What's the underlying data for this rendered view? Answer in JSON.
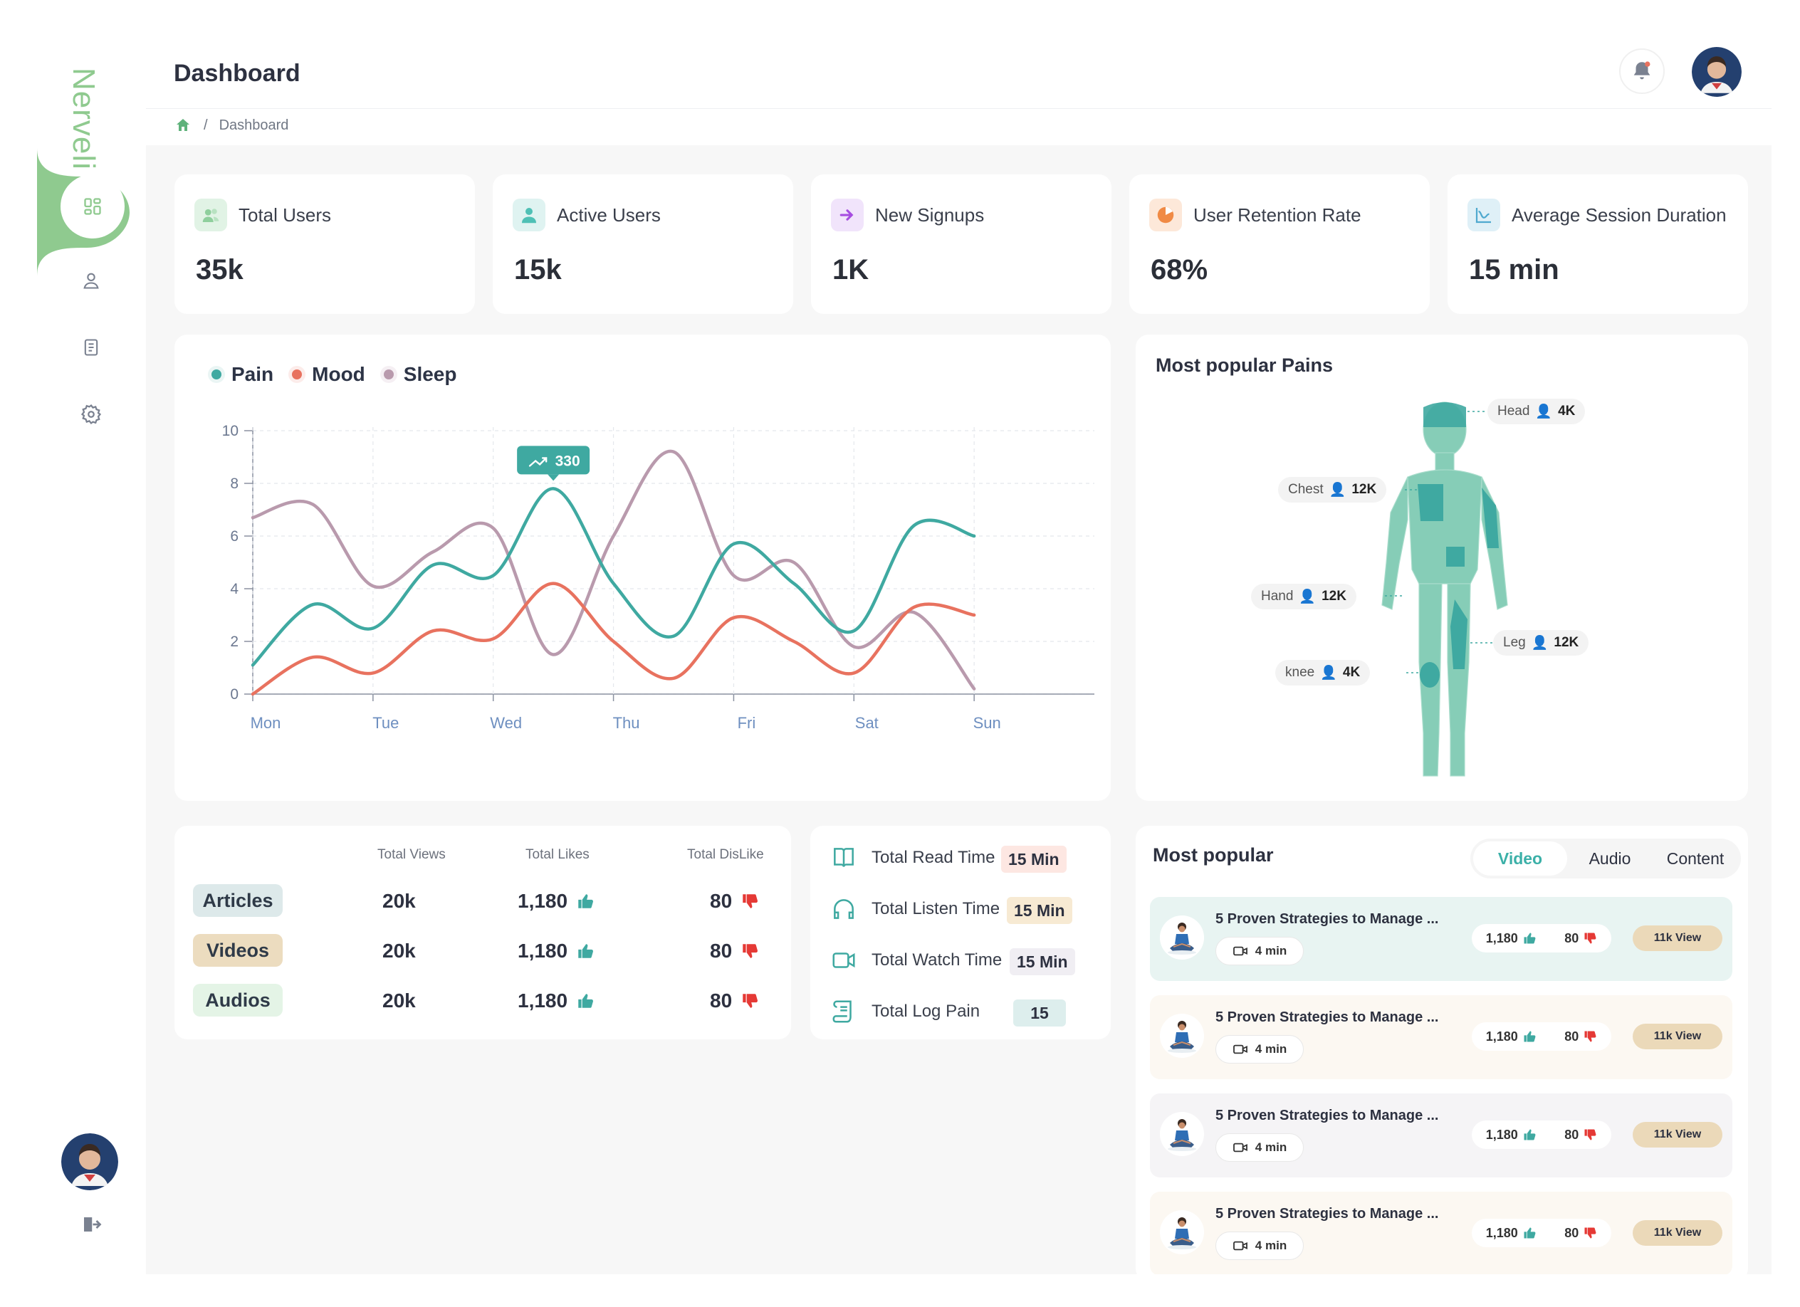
{
  "brand": {
    "name": "Nerveli"
  },
  "header": {
    "title": "Dashboard"
  },
  "breadcrumb": {
    "current": "Dashboard",
    "separator": "/"
  },
  "stats": [
    {
      "label": "Total Users",
      "value": "35k",
      "icon": "users-icon",
      "color": "#8fcf9d"
    },
    {
      "label": "Active Users",
      "value": "15k",
      "icon": "user-icon",
      "color": "#4fc0b5"
    },
    {
      "label": "New Signups",
      "value": "1K",
      "icon": "signup-arrow-icon",
      "color": "#a64ce0"
    },
    {
      "label": "User Retention Rate",
      "value": "68%",
      "icon": "pie-icon",
      "color": "#f08a45"
    },
    {
      "label": "Average Session Duration",
      "value": "15 min",
      "icon": "chart-line-icon",
      "color": "#4fa9cf"
    }
  ],
  "chart_data": {
    "type": "line",
    "categories": [
      "Mon",
      "Tue",
      "Wed",
      "Thu",
      "Fri",
      "Sat",
      "Sun"
    ],
    "x": [
      0.0,
      0.5,
      1.0,
      1.5,
      2.0,
      2.5,
      3.0,
      3.5,
      4.0,
      4.5,
      5.0,
      5.5,
      6.0,
      6.5,
      7.0
    ],
    "ylim": [
      0,
      10
    ],
    "yticks": [
      "0",
      "2",
      "4",
      "6",
      "8",
      "10"
    ],
    "grid": true,
    "legend_position": "top-left",
    "series": [
      {
        "name": "Pain",
        "color": "#3fa9a1",
        "values": [
          1.1,
          3.4,
          2.5,
          4.9,
          4.5,
          7.8,
          4.2,
          2.2,
          5.7,
          4.2,
          2.4,
          6.4,
          6.0,
          6.0,
          6.0
        ]
      },
      {
        "name": "Mood",
        "color": "#e8725f",
        "values": [
          0.0,
          1.4,
          0.8,
          2.4,
          2.1,
          4.2,
          2.0,
          0.6,
          2.9,
          2.0,
          0.8,
          3.3,
          3.0,
          3.0,
          3.0
        ]
      },
      {
        "name": "Sleep",
        "color": "#b99aad",
        "values": [
          6.7,
          7.2,
          4.1,
          5.4,
          6.3,
          1.5,
          6.0,
          9.2,
          4.5,
          5.0,
          1.8,
          3.1,
          0.2,
          0.2,
          0.2
        ]
      }
    ],
    "annotation": {
      "label": "330",
      "series": "Pain",
      "x": 3
    }
  },
  "pains": {
    "title": "Most popular Pains",
    "labels": [
      {
        "part": "Head",
        "count": "4K"
      },
      {
        "part": "Chest",
        "count": "12K"
      },
      {
        "part": "Hand",
        "count": "12K"
      },
      {
        "part": "Leg",
        "count": "12K"
      },
      {
        "part": "knee",
        "count": "4K"
      }
    ]
  },
  "content_table": {
    "headers": [
      "Total Views",
      "Total Likes",
      "Total DisLike"
    ],
    "rows": [
      {
        "type": "Articles",
        "views": "20k",
        "likes": "1,180",
        "dislikes": "80",
        "color": "#dde9ea"
      },
      {
        "type": "Videos",
        "views": "20k",
        "likes": "1,180",
        "dislikes": "80",
        "color": "#ecdcbf"
      },
      {
        "type": "Audios",
        "views": "20k",
        "likes": "1,180",
        "dislikes": "80",
        "color": "#e4f4e6"
      }
    ]
  },
  "time_stats": [
    {
      "label": "Total Read Time",
      "value": "15 Min",
      "icon": "book-icon",
      "color": "#fde7e2"
    },
    {
      "label": "Total Listen Time",
      "value": "15 Min",
      "icon": "headphones-icon",
      "color": "#f7ead3"
    },
    {
      "label": "Total Watch Time",
      "value": "15 Min",
      "icon": "video-icon",
      "color": "#f0eef3"
    },
    {
      "label": "Total Log Pain",
      "value": "15",
      "icon": "scroll-icon",
      "color": "#ddeeed"
    }
  ],
  "most_popular": {
    "title": "Most popular",
    "tabs": [
      "Video",
      "Audio",
      "Content"
    ],
    "active_tab": "Video",
    "items": [
      {
        "title": "5 Proven Strategies to Manage ...",
        "duration": "4 min",
        "likes": "1,180",
        "dislikes": "80",
        "views": "11k View",
        "bg": "#e8f4f2"
      },
      {
        "title": "5 Proven Strategies to Manage ...",
        "duration": "4 min",
        "likes": "1,180",
        "dislikes": "80",
        "views": "11k View",
        "bg": "#fcf8f2"
      },
      {
        "title": "5 Proven Strategies to Manage ...",
        "duration": "4 min",
        "likes": "1,180",
        "dislikes": "80",
        "views": "11k View",
        "bg": "#f5f4f6"
      },
      {
        "title": "5 Proven Strategies to Manage ...",
        "duration": "4 min",
        "likes": "1,180",
        "dislikes": "80",
        "views": "11k View",
        "bg": "#fcf8f2"
      }
    ]
  },
  "colors": {
    "accent": "#3fa9a1",
    "brand": "#8fca8f"
  }
}
